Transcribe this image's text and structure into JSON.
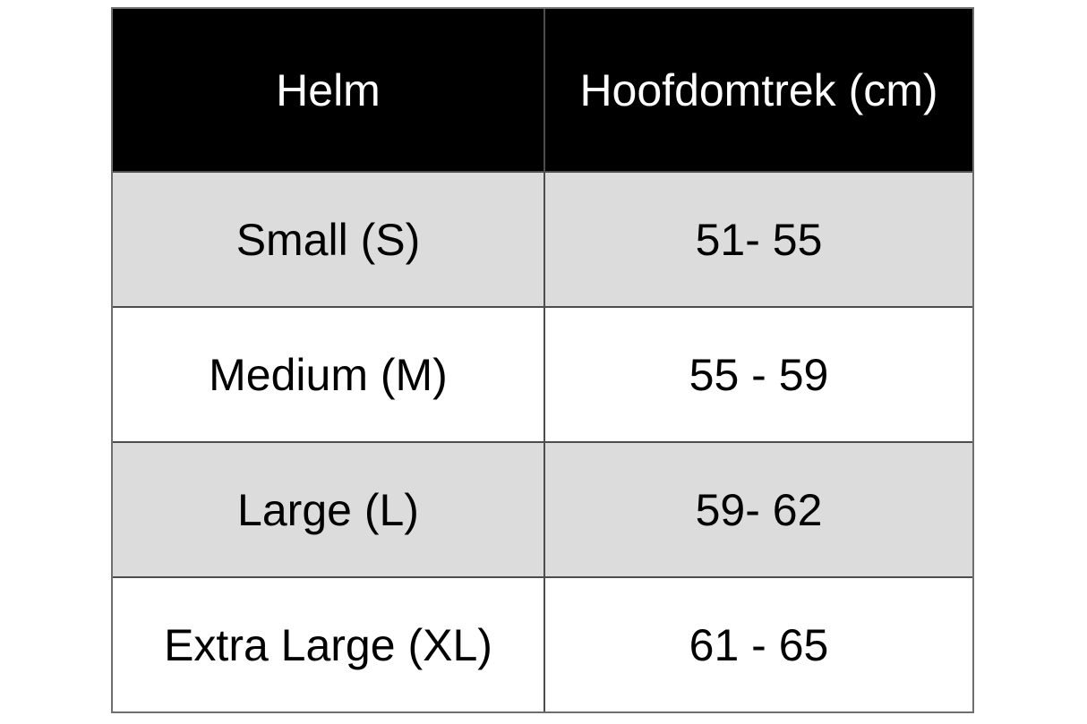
{
  "table": {
    "headers": [
      "Helm",
      "Hoofdomtrek (cm)"
    ],
    "rows": [
      {
        "helm": "Small (S)",
        "circumference": "51- 55"
      },
      {
        "helm": "Medium (M)",
        "circumference": "55 - 59"
      },
      {
        "helm": "Large (L)",
        "circumference": "59- 62"
      },
      {
        "helm": "Extra Large (XL)",
        "circumference": "61 - 65"
      }
    ]
  },
  "colors": {
    "header_bg": "#000000",
    "header_text": "#ffffff",
    "row_alt_bg": "#dcdcdc",
    "row_bg": "#ffffff",
    "border": "#4d4d4d",
    "outer_border": "#6e6e6e",
    "body_text": "#000000"
  },
  "chart_data": {
    "type": "table",
    "title": "",
    "columns": [
      "Helm",
      "Hoofdomtrek (cm)"
    ],
    "rows": [
      [
        "Small (S)",
        "51- 55"
      ],
      [
        "Medium (M)",
        "55 - 59"
      ],
      [
        "Large (L)",
        "59- 62"
      ],
      [
        "Extra Large (XL)",
        "61 - 65"
      ]
    ],
    "notes": "Helmet size chart (Dutch): size vs head circumference in cm; alternating light-gray/white rows; black header band"
  }
}
